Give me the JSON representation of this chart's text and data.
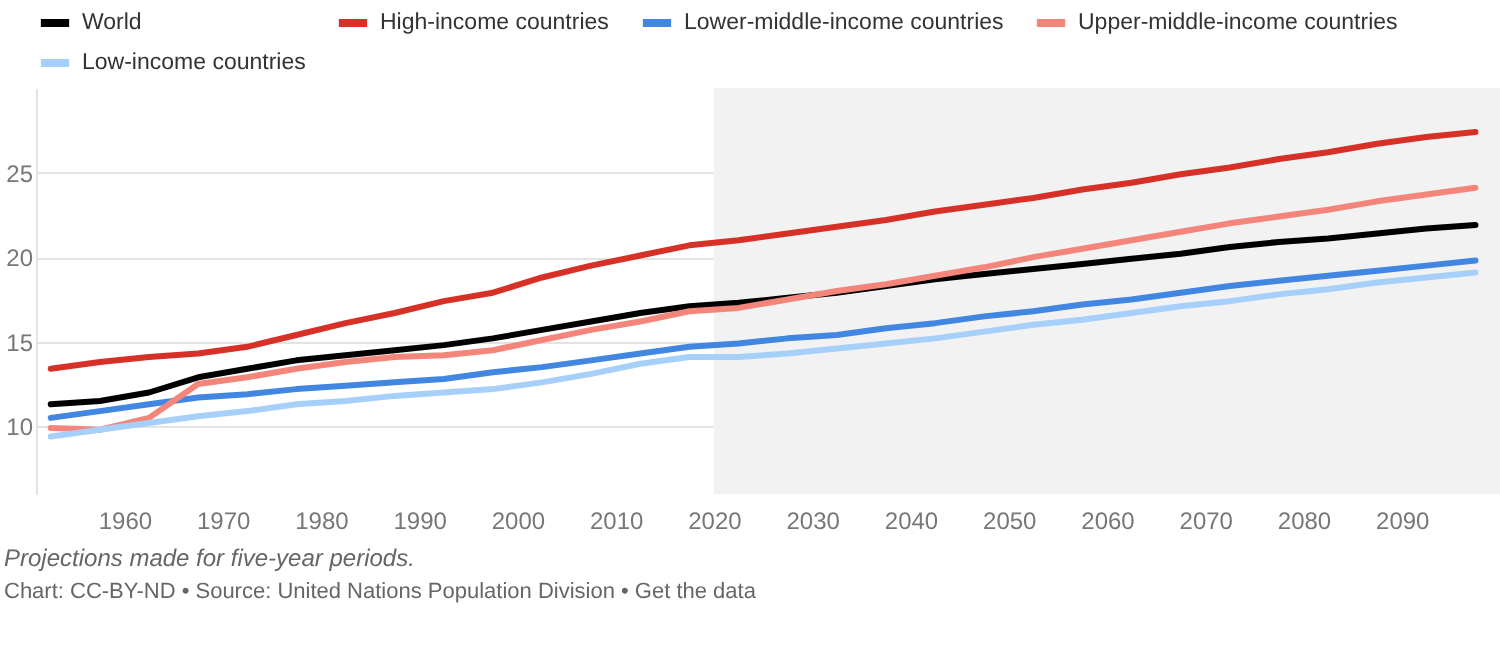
{
  "chart_data": {
    "type": "line",
    "x": [
      1952.5,
      1957.5,
      1962.5,
      1967.5,
      1972.5,
      1977.5,
      1982.5,
      1987.5,
      1992.5,
      1997.5,
      2002.5,
      2007.5,
      2012.5,
      2017.5,
      2022.5,
      2027.5,
      2032.5,
      2037.5,
      2042.5,
      2047.5,
      2052.5,
      2057.5,
      2062.5,
      2067.5,
      2072.5,
      2077.5,
      2082.5,
      2087.5,
      2092.5,
      2097.5
    ],
    "series": [
      {
        "name": "World",
        "color": "#000000",
        "values": [
          11.3,
          11.5,
          12.0,
          12.9,
          13.4,
          13.9,
          14.2,
          14.5,
          14.8,
          15.2,
          15.7,
          16.2,
          16.7,
          17.1,
          17.3,
          17.6,
          17.9,
          18.3,
          18.7,
          19.0,
          19.3,
          19.6,
          19.9,
          20.2,
          20.6,
          20.9,
          21.1,
          21.4,
          21.7,
          21.9
        ]
      },
      {
        "name": "High-income countries",
        "color": "#d73027",
        "values": [
          13.4,
          13.8,
          14.1,
          14.3,
          14.7,
          15.4,
          16.1,
          16.7,
          17.4,
          17.9,
          18.8,
          19.5,
          20.1,
          20.7,
          21.0,
          21.4,
          21.8,
          22.2,
          22.7,
          23.1,
          23.5,
          24.0,
          24.4,
          24.9,
          25.3,
          25.8,
          26.2,
          26.7,
          27.1,
          27.4
        ]
      },
      {
        "name": "Lower-middle-income countries",
        "color": "#4186e0",
        "values": [
          10.5,
          10.9,
          11.3,
          11.7,
          11.9,
          12.2,
          12.4,
          12.6,
          12.8,
          13.2,
          13.5,
          13.9,
          14.3,
          14.7,
          14.9,
          15.2,
          15.4,
          15.8,
          16.1,
          16.5,
          16.8,
          17.2,
          17.5,
          17.9,
          18.3,
          18.6,
          18.9,
          19.2,
          19.5,
          19.8
        ]
      },
      {
        "name": "Upper-middle-income countries",
        "color": "#f4857a",
        "values": [
          9.9,
          9.8,
          10.5,
          12.5,
          12.9,
          13.4,
          13.8,
          14.1,
          14.2,
          14.5,
          15.1,
          15.7,
          16.2,
          16.8,
          17.0,
          17.5,
          18.0,
          18.4,
          18.9,
          19.4,
          20.0,
          20.5,
          21.0,
          21.5,
          22.0,
          22.4,
          22.8,
          23.3,
          23.7,
          24.1
        ]
      },
      {
        "name": "Low-income countries",
        "color": "#a6d0fa",
        "values": [
          9.4,
          9.8,
          10.2,
          10.6,
          10.9,
          11.3,
          11.5,
          11.8,
          12.0,
          12.2,
          12.6,
          13.1,
          13.7,
          14.1,
          14.1,
          14.3,
          14.6,
          14.9,
          15.2,
          15.6,
          16.0,
          16.3,
          16.7,
          17.1,
          17.4,
          17.8,
          18.1,
          18.5,
          18.8,
          19.1
        ]
      }
    ],
    "xlim": [
      1951,
      2100
    ],
    "xticks": [
      1960,
      1970,
      1980,
      1990,
      2000,
      2010,
      2020,
      2030,
      2040,
      2050,
      2060,
      2070,
      2080,
      2090
    ],
    "ylim": [
      6,
      30
    ],
    "yticks": [
      10,
      15,
      20,
      25
    ],
    "bands": [
      {
        "axis": "x",
        "from": 2020,
        "to": 2100,
        "color": "#f2f2f2"
      }
    ],
    "grid": "y",
    "legend": "top",
    "annotations": [
      "Projections made for five-year periods.",
      "Chart: CC-BY-ND • Source: United Nations Population Division • Get the data"
    ]
  }
}
